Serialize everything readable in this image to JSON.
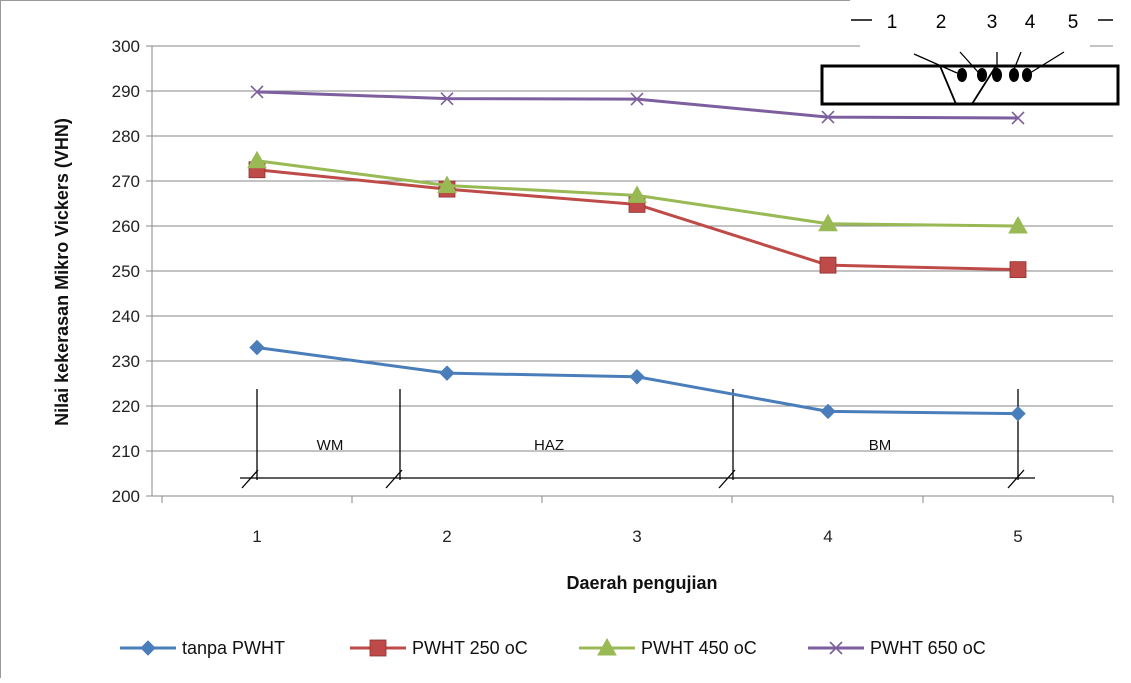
{
  "chart_data": {
    "type": "line",
    "title": "",
    "xlabel": "Daerah pengujian",
    "ylabel": "Nilai kekerasan Mikro Vickers (VHN)",
    "x": [
      1,
      2,
      3,
      4,
      5
    ],
    "x_tick_labels": [
      "1",
      "2",
      "3",
      "4",
      "5"
    ],
    "ylim": [
      200,
      300
    ],
    "y_ticks": [
      200,
      210,
      220,
      230,
      240,
      250,
      260,
      270,
      280,
      290,
      300
    ],
    "y_tick_labels": [
      "200",
      "210",
      "220",
      "230",
      "240",
      "250",
      "260",
      "270",
      "280",
      "290",
      "300"
    ],
    "grid": "horizontal",
    "legend_position": "bottom",
    "series": [
      {
        "name": "tanpa PWHT",
        "color": "#4a7ebb",
        "marker": "diamond",
        "values": [
          233,
          227.3,
          226.5,
          218.8,
          218.3
        ]
      },
      {
        "name": "PWHT 250 oC",
        "color": "#be4b48",
        "marker": "square",
        "values": [
          272.5,
          268.2,
          264.8,
          251.3,
          250.3
        ]
      },
      {
        "name": "PWHT 450 oC",
        "color": "#98b954",
        "marker": "triangle",
        "values": [
          274.5,
          269,
          266.8,
          260.5,
          260
        ]
      },
      {
        "name": "PWHT 650 oC",
        "color": "#7d5fa0",
        "marker": "x",
        "values": [
          289.8,
          288.3,
          288.2,
          284.2,
          284
        ]
      }
    ],
    "annotations": {
      "zones": [
        "WM",
        "HAZ",
        "BM"
      ],
      "inset_labels": [
        "1",
        "2",
        "3",
        "4",
        "5"
      ]
    }
  }
}
